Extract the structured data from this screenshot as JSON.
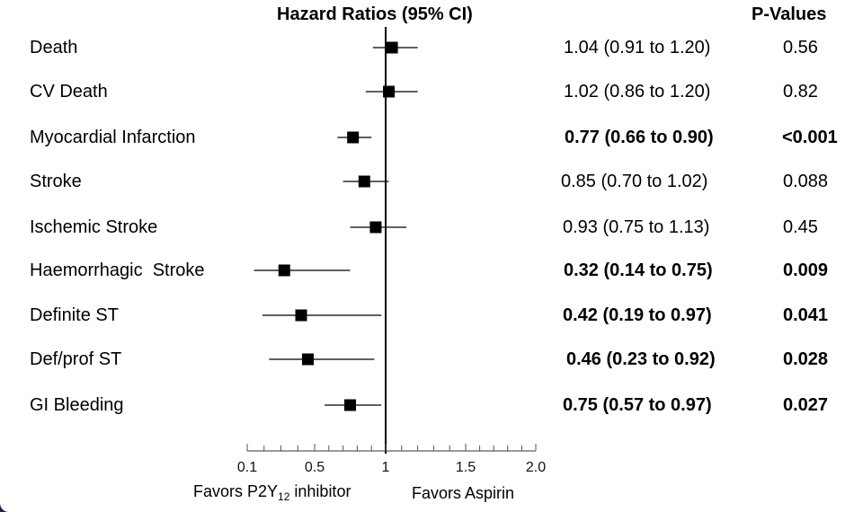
{
  "chart_data": {
    "type": "forest",
    "title": "Hazard Ratios (95% CI)",
    "pvalue_header": "P-Values",
    "reference_value": 1,
    "x_ticks": [
      "0.1",
      "0.5",
      "1",
      "1.5",
      "2.0"
    ],
    "x_favors_left": "Favors P2Y",
    "x_favors_left_sub": "12",
    "x_favors_left_tail": " inhibitor",
    "x_favors_right": "Favors Aspirin",
    "rows": [
      {
        "label": "Death",
        "hr": 1.04,
        "lo": 0.91,
        "hi": 1.2,
        "hr_text": "1.04 (0.91 to 1.20)",
        "p": "0.56",
        "significant": false
      },
      {
        "label": "CV Death",
        "hr": 1.02,
        "lo": 0.86,
        "hi": 1.2,
        "hr_text": "1.02 (0.86 to 1.20)",
        "p": "0.82",
        "significant": false
      },
      {
        "label": "Myocardial Infarction",
        "hr": 0.77,
        "lo": 0.66,
        "hi": 0.9,
        "hr_text": "0.77 (0.66 to 0.90)",
        "p": "<0.001",
        "significant": true
      },
      {
        "label": "Stroke",
        "hr": 0.85,
        "lo": 0.7,
        "hi": 1.02,
        "hr_text": "0.85 (0.70 to 1.02)",
        "p": "0.088",
        "significant": false
      },
      {
        "label": "Ischemic Stroke",
        "hr": 0.93,
        "lo": 0.75,
        "hi": 1.13,
        "hr_text": "0.93 (0.75 to 1.13)",
        "p": "0.45",
        "significant": false
      },
      {
        "label": "Haemorrhagic  Stroke",
        "hr": 0.32,
        "lo": 0.14,
        "hi": 0.75,
        "hr_text": "0.32 (0.14 to 0.75)",
        "p": "0.009",
        "significant": true
      },
      {
        "label": "Definite ST",
        "hr": 0.42,
        "lo": 0.19,
        "hi": 0.97,
        "hr_text": "0.42 (0.19 to 0.97)",
        "p": "0.041",
        "significant": true
      },
      {
        "label": "Def/prof ST",
        "hr": 0.46,
        "lo": 0.23,
        "hi": 0.92,
        "hr_text": "0.46 (0.23 to 0.92)",
        "p": "0.028",
        "significant": true
      },
      {
        "label": "GI Bleeding",
        "hr": 0.75,
        "lo": 0.57,
        "hi": 0.97,
        "hr_text": "0.75 (0.57 to 0.97)",
        "p": "0.027",
        "significant": true
      }
    ]
  }
}
